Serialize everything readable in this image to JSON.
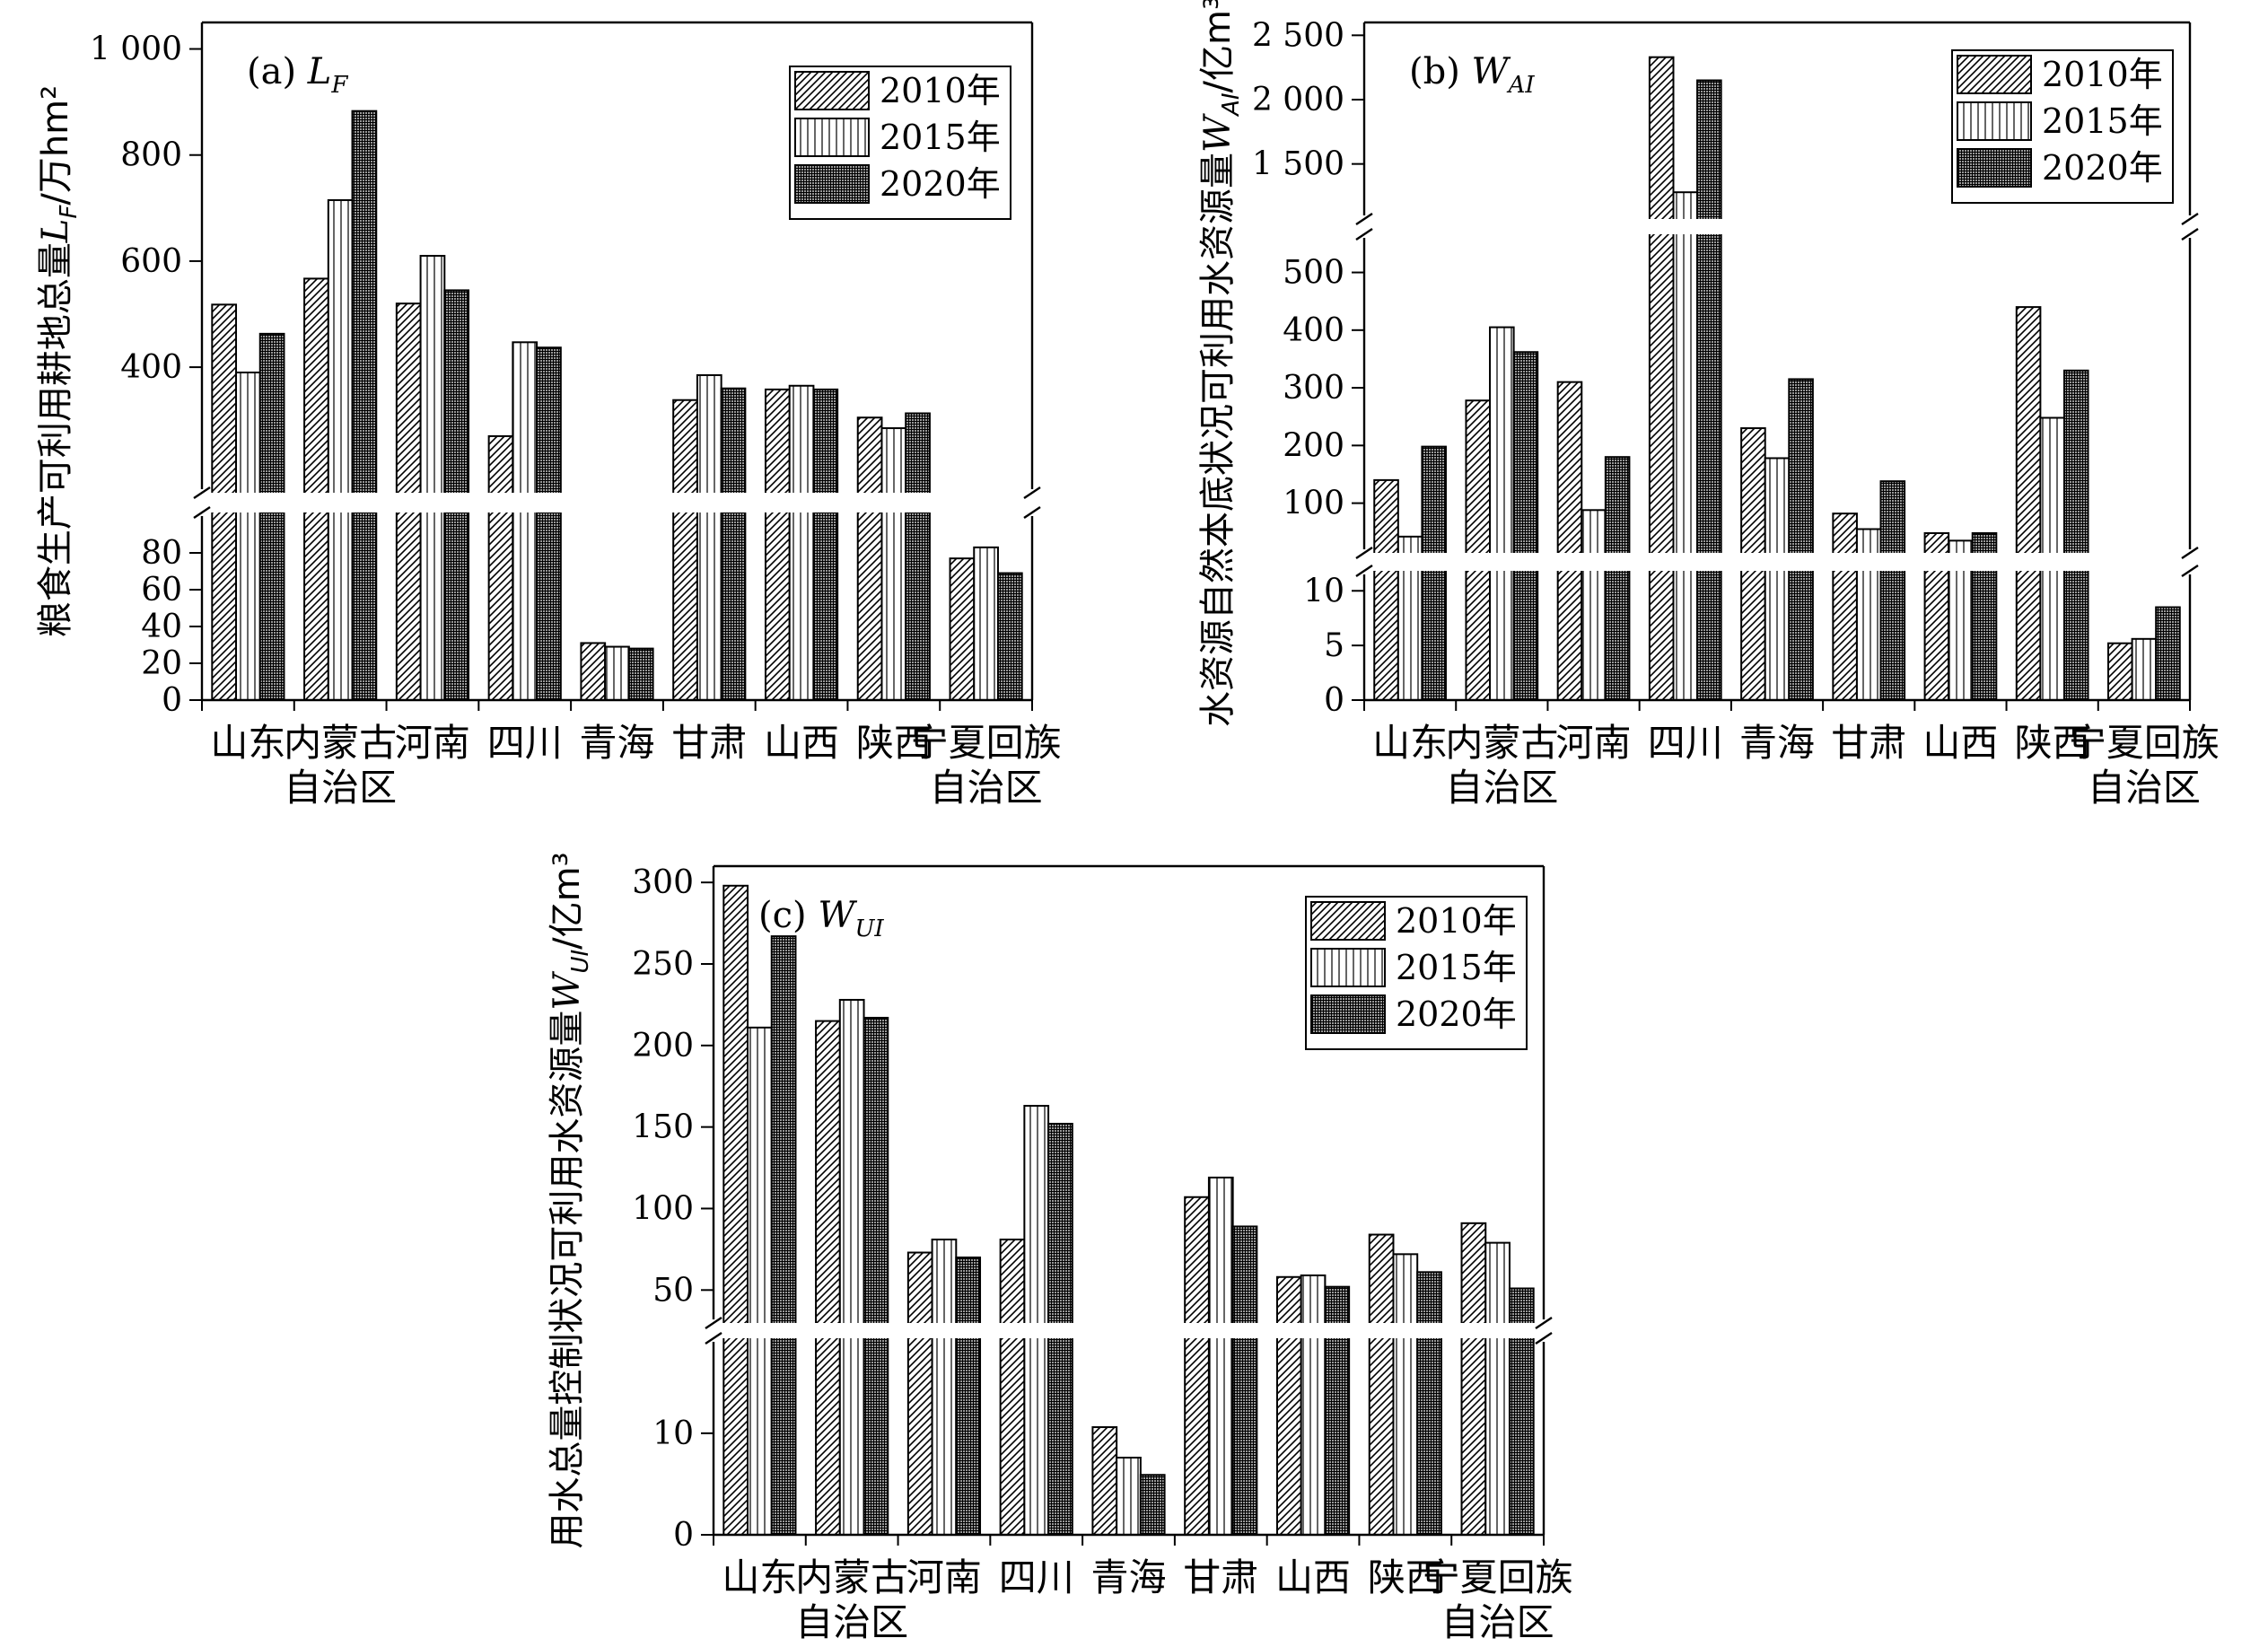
{
  "colors": {
    "ink": "#000000",
    "bar_2010": "#bdbdbd",
    "bar_2015": "#ffffff",
    "bar_2020": "#555555",
    "background": "#ffffff"
  },
  "chart_data": [
    {
      "type": "bar",
      "panel": "(a) ",
      "panel_var": "L",
      "panel_sub": "F",
      "ylabel": "粮食生产可利用耕地总量",
      "ylabel_var": "L",
      "ylabel_sub": "F",
      "ylabel_unit": "/万hm²",
      "categories": [
        [
          "山东"
        ],
        [
          "内蒙古",
          "自治区"
        ],
        [
          "河南"
        ],
        [
          "四川"
        ],
        [
          "青海"
        ],
        [
          "甘肃"
        ],
        [
          "山西"
        ],
        [
          "陕西"
        ],
        [
          "宁夏回族",
          "自治区"
        ]
      ],
      "series": [
        {
          "name": "2010年",
          "values": [
            518,
            567,
            520,
            270,
            31,
            338,
            358,
            305,
            77
          ]
        },
        {
          "name": "2015年",
          "values": [
            390,
            715,
            610,
            447,
            29,
            385,
            365,
            285,
            83
          ]
        },
        {
          "name": "2020年",
          "values": [
            463,
            883,
            545,
            437,
            28,
            360,
            358,
            313,
            69
          ]
        }
      ],
      "y_segments": [
        {
          "range": [
            0,
            100
          ],
          "ticks": [
            0,
            20,
            40,
            60,
            80
          ],
          "tick_labels": [
            "0",
            "20",
            "40",
            "60",
            "80"
          ]
        },
        {
          "range": [
            170,
            1050
          ],
          "ticks": [
            400,
            600,
            800,
            1000
          ],
          "tick_labels": [
            "400",
            "600",
            "800",
            "1 000"
          ]
        }
      ],
      "legend_position": "top-right",
      "grid": false
    },
    {
      "type": "bar",
      "panel": "(b) ",
      "panel_var": "W",
      "panel_sub": "AI",
      "ylabel": "水资源自然本底状况可利用水资源量",
      "ylabel_var": "W",
      "ylabel_sub": "AI",
      "ylabel_unit": "/亿m³",
      "categories": [
        [
          "山东"
        ],
        [
          "内蒙古",
          "自治区"
        ],
        [
          "河南"
        ],
        [
          "四川"
        ],
        [
          "青海"
        ],
        [
          "甘肃"
        ],
        [
          "山西"
        ],
        [
          "陕西"
        ],
        [
          "宁夏回族",
          "自治区"
        ]
      ],
      "series": [
        {
          "name": "2010年",
          "values": [
            140,
            278,
            310,
            2330,
            230,
            82,
            48,
            440,
            5.2
          ]
        },
        {
          "name": "2015年",
          "values": [
            42,
            405,
            88,
            1280,
            178,
            55,
            35,
            248,
            5.6
          ]
        },
        {
          "name": "2020年",
          "values": [
            198,
            362,
            180,
            2150,
            315,
            138,
            48,
            330,
            8.5
          ]
        }
      ],
      "y_segments": [
        {
          "range": [
            0,
            11.5
          ],
          "ticks": [
            0,
            5,
            10
          ],
          "tick_labels": [
            "0",
            "5",
            "10"
          ]
        },
        {
          "range": [
            20,
            560
          ],
          "ticks": [
            100,
            200,
            300,
            400,
            500
          ],
          "tick_labels": [
            "100",
            "200",
            "300",
            "400",
            "500"
          ]
        },
        {
          "range": [
            1100,
            2600
          ],
          "ticks": [
            1500,
            2000,
            2500
          ],
          "tick_labels": [
            "1 500",
            "2 000",
            "2 500"
          ]
        }
      ],
      "legend_position": "top-right",
      "grid": false
    },
    {
      "type": "bar",
      "panel": "(c) ",
      "panel_var": "W",
      "panel_sub": "UI",
      "ylabel": "用水总量控制状况可利用水资源量",
      "ylabel_var": "W",
      "ylabel_sub": "UI",
      "ylabel_unit": "/亿m³",
      "categories": [
        [
          "山东"
        ],
        [
          "内蒙古",
          "自治区"
        ],
        [
          "河南"
        ],
        [
          "四川"
        ],
        [
          "青海"
        ],
        [
          "甘肃"
        ],
        [
          "山西"
        ],
        [
          "陕西"
        ],
        [
          "宁夏回族",
          "自治区"
        ]
      ],
      "series": [
        {
          "name": "2010年",
          "values": [
            298,
            215,
            73,
            81,
            10.6,
            107,
            58,
            84,
            91
          ]
        },
        {
          "name": "2015年",
          "values": [
            211,
            228,
            81,
            163,
            7.6,
            119,
            59,
            72,
            79
          ]
        },
        {
          "name": "2020年",
          "values": [
            267,
            217,
            70,
            152,
            5.9,
            89,
            52,
            61,
            51
          ]
        }
      ],
      "y_segments": [
        {
          "range": [
            0,
            19
          ],
          "ticks": [
            0,
            10
          ],
          "tick_labels": [
            "0",
            "10"
          ]
        },
        {
          "range": [
            32,
            310
          ],
          "ticks": [
            50,
            100,
            150,
            200,
            250,
            300
          ],
          "tick_labels": [
            "50",
            "100",
            "150",
            "200",
            "250",
            "300"
          ]
        }
      ],
      "legend_position": "top-right",
      "grid": false
    }
  ]
}
